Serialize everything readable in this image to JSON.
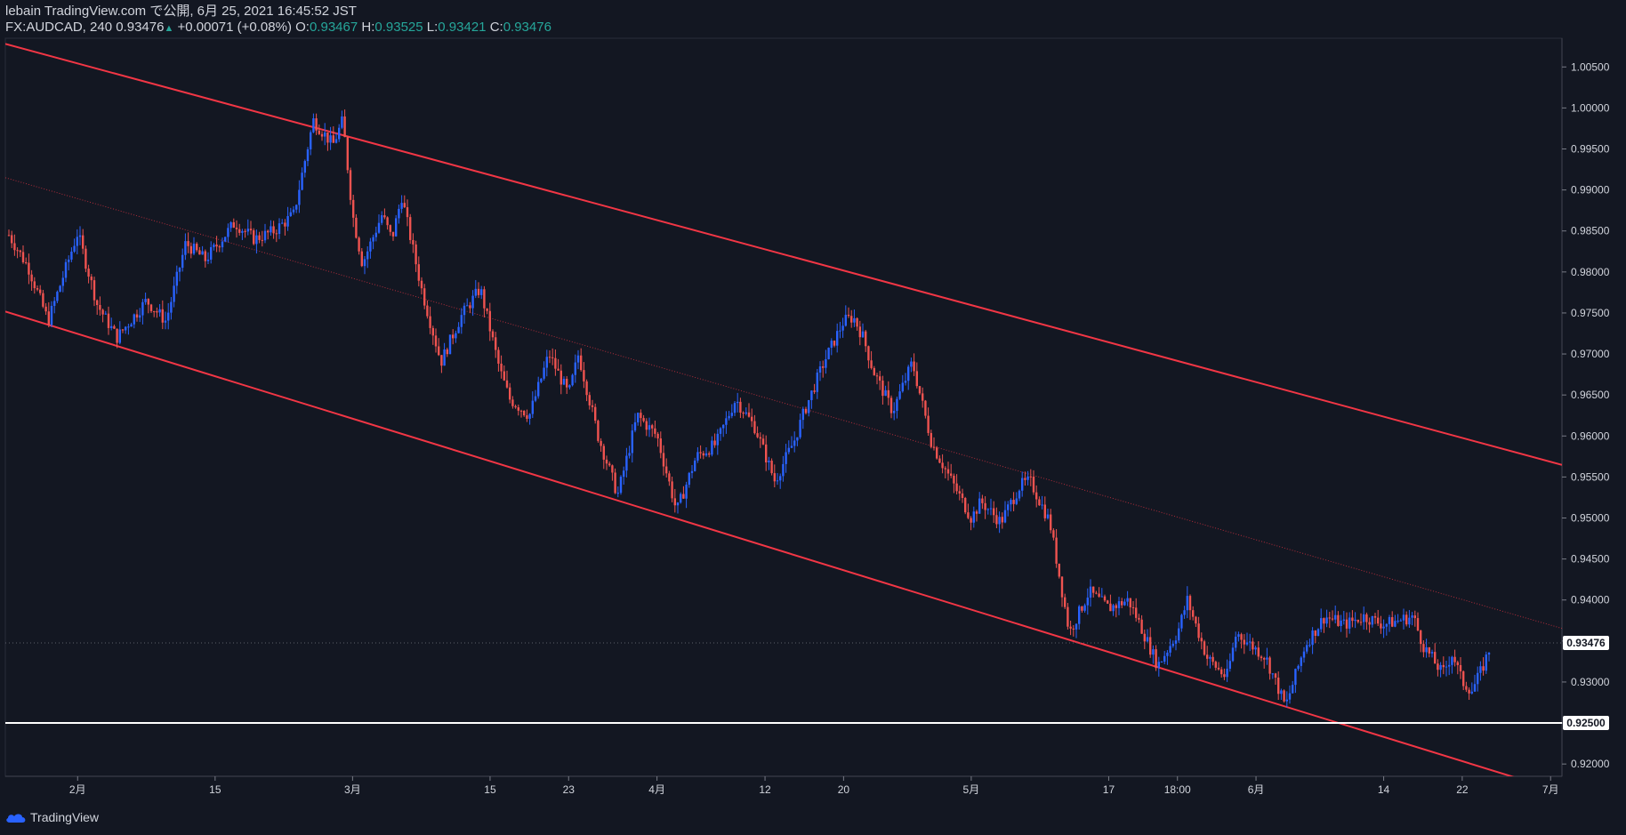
{
  "header": {
    "line1": "lebain TradingView.com で公開, 6月 25, 2021 16:45:52 JST",
    "symbol": "FX:AUDCAD, 240",
    "last": "0.93476",
    "change": "+0.00071 (+0.08%)",
    "o_label": "O:",
    "o_value": "0.93467",
    "h_label": "H:",
    "h_value": "0.93525",
    "l_label": "L:",
    "l_value": "0.93421",
    "c_label": "C:",
    "c_value": "0.93476"
  },
  "footer": {
    "brand": "TradingView",
    "logo_icon": "tradingview-cloud-icon"
  },
  "colors": {
    "background": "#131722",
    "up": "#2962ff",
    "down": "#ef5350",
    "channel": "#f23645",
    "support": "#ffffff",
    "grid": "#2a2e39",
    "price_label_bg": "#ffffff"
  },
  "chart_data": {
    "type": "candlestick",
    "symbol": "FX:AUDCAD",
    "interval": "240",
    "ylim": [
      0.9185,
      1.0085
    ],
    "y_ticks": [
      "1.00500",
      "1.00000",
      "0.99500",
      "0.99000",
      "0.98500",
      "0.98000",
      "0.97500",
      "0.97000",
      "0.96500",
      "0.96000",
      "0.95500",
      "0.95000",
      "0.94500",
      "0.94000",
      "0.93500",
      "0.93000",
      "0.92500",
      "0.92000"
    ],
    "x_ticks": [
      {
        "label": "2月",
        "date": "2021-02-01"
      },
      {
        "label": "15",
        "date": "2021-02-15"
      },
      {
        "label": "3月",
        "date": "2021-03-01"
      },
      {
        "label": "15",
        "date": "2021-03-15"
      },
      {
        "label": "23",
        "date": "2021-03-23"
      },
      {
        "label": "4月",
        "date": "2021-04-01"
      },
      {
        "label": "12",
        "date": "2021-04-12"
      },
      {
        "label": "20",
        "date": "2021-04-20"
      },
      {
        "label": "5月",
        "date": "2021-05-03"
      },
      {
        "label": "17",
        "date": "2021-05-17"
      },
      {
        "label": "18:00",
        "date": "2021-05-24"
      },
      {
        "label": "6月",
        "date": "2021-06-01"
      },
      {
        "label": "14",
        "date": "2021-06-14"
      },
      {
        "label": "22",
        "date": "2021-06-22"
      },
      {
        "label": "7月",
        "date": "2021-07-01"
      }
    ],
    "path": [
      [
        "2021-01-25",
        0.9845
      ],
      [
        "2021-01-27",
        0.9805
      ],
      [
        "2021-01-29",
        0.974
      ],
      [
        "2021-02-01",
        0.9848
      ],
      [
        "2021-02-03",
        0.976
      ],
      [
        "2021-02-05",
        0.972
      ],
      [
        "2021-02-08",
        0.9765
      ],
      [
        "2021-02-10",
        0.974
      ],
      [
        "2021-02-12",
        0.9835
      ],
      [
        "2021-02-14",
        0.9815
      ],
      [
        "2021-02-17",
        0.986
      ],
      [
        "2021-02-19",
        0.984
      ],
      [
        "2021-02-21",
        0.985
      ],
      [
        "2021-02-23",
        0.987
      ],
      [
        "2021-02-25",
        0.9985
      ],
      [
        "2021-02-27",
        0.9955
      ],
      [
        "2021-02-28",
        0.9985
      ],
      [
        "2021-03-01",
        0.987
      ],
      [
        "2021-03-02",
        0.981
      ],
      [
        "2021-03-04",
        0.987
      ],
      [
        "2021-03-05",
        0.984
      ],
      [
        "2021-03-06",
        0.9892
      ],
      [
        "2021-03-08",
        0.978
      ],
      [
        "2021-03-10",
        0.969
      ],
      [
        "2021-03-12",
        0.9745
      ],
      [
        "2021-03-14",
        0.978
      ],
      [
        "2021-03-16",
        0.968
      ],
      [
        "2021-03-17",
        0.9645
      ],
      [
        "2021-03-19",
        0.9625
      ],
      [
        "2021-03-21",
        0.97
      ],
      [
        "2021-03-23",
        0.965
      ],
      [
        "2021-03-24",
        0.97
      ],
      [
        "2021-03-26",
        0.96
      ],
      [
        "2021-03-28",
        0.9528
      ],
      [
        "2021-03-30",
        0.9625
      ],
      [
        "2021-04-01",
        0.96
      ],
      [
        "2021-04-03",
        0.9508
      ],
      [
        "2021-04-05",
        0.9575
      ],
      [
        "2021-04-07",
        0.959
      ],
      [
        "2021-04-09",
        0.9645
      ],
      [
        "2021-04-11",
        0.961
      ],
      [
        "2021-04-13",
        0.9545
      ],
      [
        "2021-04-15",
        0.9595
      ],
      [
        "2021-04-16",
        0.963
      ],
      [
        "2021-04-18",
        0.969
      ],
      [
        "2021-04-20",
        0.974
      ],
      [
        "2021-04-21",
        0.9745
      ],
      [
        "2021-04-22",
        0.972
      ],
      [
        "2021-04-23",
        0.968
      ],
      [
        "2021-04-25",
        0.963
      ],
      [
        "2021-04-27",
        0.969
      ],
      [
        "2021-04-29",
        0.959
      ],
      [
        "2021-05-01",
        0.9545
      ],
      [
        "2021-05-03",
        0.95
      ],
      [
        "2021-05-04",
        0.952
      ],
      [
        "2021-05-06",
        0.9495
      ],
      [
        "2021-05-08",
        0.954
      ],
      [
        "2021-05-09",
        0.9545
      ],
      [
        "2021-05-11",
        0.9495
      ],
      [
        "2021-05-13",
        0.936
      ],
      [
        "2021-05-15",
        0.941
      ],
      [
        "2021-05-17",
        0.939
      ],
      [
        "2021-05-19",
        0.94
      ],
      [
        "2021-05-20",
        0.9375
      ],
      [
        "2021-05-22",
        0.932
      ],
      [
        "2021-05-24",
        0.936
      ],
      [
        "2021-05-25",
        0.94
      ],
      [
        "2021-05-27",
        0.933
      ],
      [
        "2021-05-29",
        0.9305
      ],
      [
        "2021-05-30",
        0.936
      ],
      [
        "2021-06-02",
        0.933
      ],
      [
        "2021-06-04",
        0.927
      ],
      [
        "2021-06-06",
        0.9345
      ],
      [
        "2021-06-08",
        0.938
      ],
      [
        "2021-06-10",
        0.937
      ],
      [
        "2021-06-12",
        0.938
      ],
      [
        "2021-06-14",
        0.937
      ],
      [
        "2021-06-17",
        0.938
      ],
      [
        "2021-06-18",
        0.9345
      ],
      [
        "2021-06-20",
        0.931
      ],
      [
        "2021-06-21",
        0.9335
      ],
      [
        "2021-06-22",
        0.93
      ],
      [
        "2021-06-23",
        0.929
      ],
      [
        "2021-06-24",
        0.9315
      ],
      [
        "2021-06-25",
        0.93476
      ]
    ],
    "channel_upper": [
      [
        "2021-02-21",
        0.99895
      ],
      [
        "2021-06-29",
        0.9575
      ]
    ],
    "channel_lower": [
      [
        "2021-03-27",
        0.9525
      ],
      [
        "2021-06-04",
        0.927
      ]
    ],
    "median_line": true,
    "support_level": "0.92500",
    "last_price": "0.93476"
  }
}
